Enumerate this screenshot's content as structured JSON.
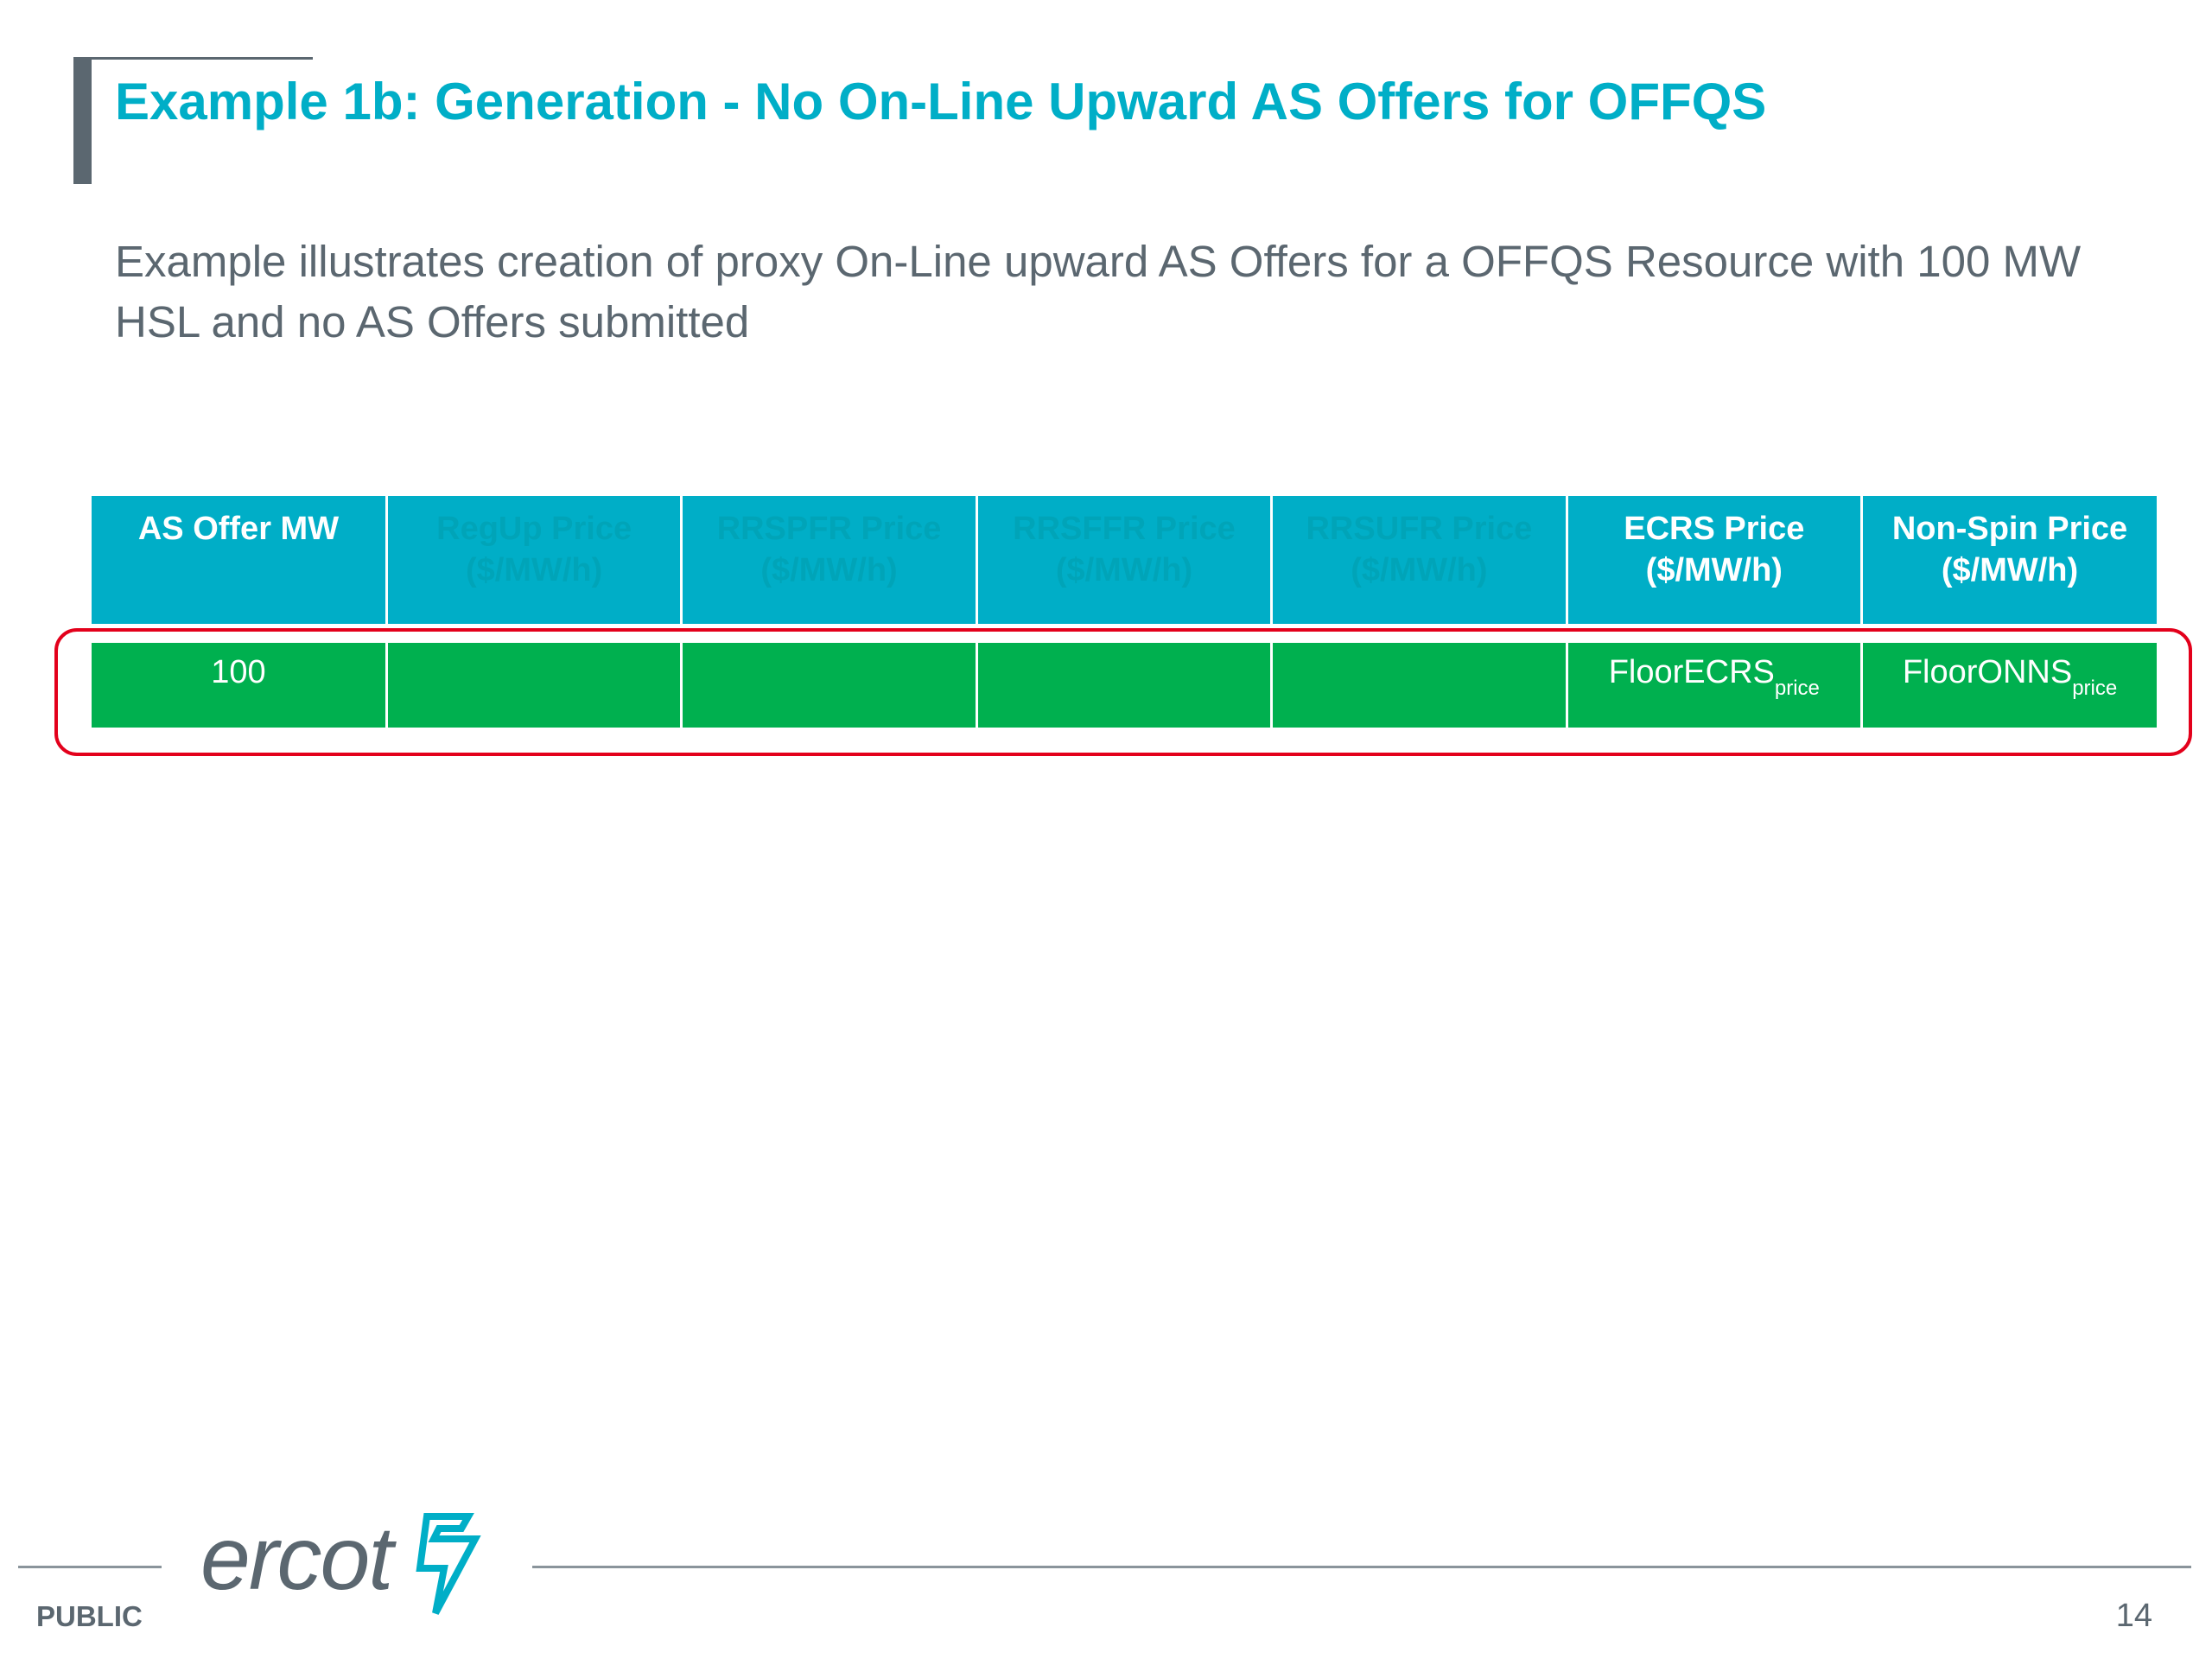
{
  "slide": {
    "title": "Example 1b: Generation - No On-Line Upward AS Offers for OFFQS",
    "body": "Example illustrates creation of proxy On-Line upward AS Offers for a OFFQS Resource with 100 MW HSL and no AS Offers submitted"
  },
  "table": {
    "headers": [
      {
        "line1": "AS Offer MW",
        "line2": "",
        "emphasis": "active"
      },
      {
        "line1": "RegUp Price",
        "line2": "($/MW/h)",
        "emphasis": "dim"
      },
      {
        "line1": "RRSPFR Price",
        "line2": "($/MW/h)",
        "emphasis": "dim"
      },
      {
        "line1": "RRSFFR Price",
        "line2": "($/MW/h)",
        "emphasis": "dim"
      },
      {
        "line1": "RRSUFR Price",
        "line2": "($/MW/h)",
        "emphasis": "dim"
      },
      {
        "line1": "ECRS Price",
        "line2": "($/MW/h)",
        "emphasis": "active"
      },
      {
        "line1": "Non-Spin Price",
        "line2": "($/MW/h)",
        "emphasis": "active"
      }
    ],
    "row": [
      {
        "main": "100",
        "sub": ""
      },
      {
        "main": "",
        "sub": ""
      },
      {
        "main": "",
        "sub": ""
      },
      {
        "main": "",
        "sub": ""
      },
      {
        "main": "",
        "sub": ""
      },
      {
        "main": "FloorECRS",
        "sub": "price"
      },
      {
        "main": "FloorONNS",
        "sub": "price"
      }
    ]
  },
  "footer": {
    "classification": "PUBLIC",
    "page_number": "14",
    "logo_text": "ercot",
    "logo_icon": "ercot-lightning-mark"
  },
  "colors": {
    "accent": "#00aec7",
    "text_gray": "#5b6770",
    "row_green": "#00b04f",
    "highlight_red": "#e3001b"
  }
}
